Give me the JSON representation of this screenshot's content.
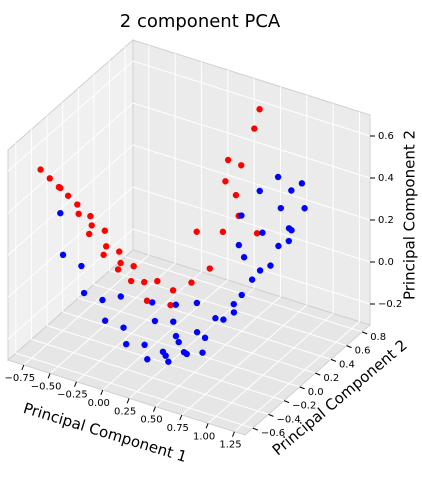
{
  "chart_data": {
    "type": "scatter3d",
    "title": "2 component PCA",
    "xlabel": "Principal Component 1",
    "ylabel": "Principal Component 2",
    "zlabel": "Principal Component 2",
    "xlim": [
      -0.9,
      1.35
    ],
    "ylim": [
      -0.7,
      0.9
    ],
    "zlim": [
      -0.3,
      0.7
    ],
    "grid": true,
    "xticks": [
      {
        "value": -0.75,
        "label": "−0.75"
      },
      {
        "value": -0.5,
        "label": "−0.50"
      },
      {
        "value": -0.25,
        "label": "−0.25"
      },
      {
        "value": 0,
        "label": "0.00"
      },
      0.25,
      {
        "value": 0.5,
        "label": "0.50"
      },
      0.75,
      {
        "value": 1,
        "label": "1.00"
      },
      1.25
    ],
    "yticks": [
      {
        "value": -0.6,
        "label": "−0.6"
      },
      {
        "value": -0.4,
        "label": "−0.4"
      },
      {
        "value": -0.2,
        "label": "−0.2"
      },
      {
        "value": 0,
        "label": "0.0"
      },
      0.2,
      0.4,
      0.6,
      0.8
    ],
    "zticks": [
      {
        "value": -0.2,
        "label": "−0.2"
      },
      {
        "value": 0,
        "label": "0.0"
      },
      0.2,
      0.4,
      0.6
    ],
    "series": [
      {
        "color": "#ff0000",
        "x": [
          -0.85,
          -0.8,
          -0.75,
          -0.7,
          -0.7,
          -0.65,
          -0.6,
          -0.6,
          -0.55,
          -0.5,
          -0.5,
          -0.45,
          -0.4,
          -0.4,
          -0.35,
          -0.3,
          -0.3,
          -0.25,
          -0.2,
          -0.15,
          -0.1,
          0,
          0.05,
          0.1,
          0.2,
          0.25,
          0.3,
          0.35,
          0.4,
          0.45,
          0.3,
          0.2,
          0.4,
          0.5,
          0.15
        ],
        "y": [
          -0.35,
          -0.3,
          -0.25,
          -0.2,
          -0.3,
          -0.15,
          -0.2,
          -0.05,
          -0.1,
          0,
          -0.2,
          -0.05,
          0.05,
          -0.15,
          0,
          0.1,
          -0.1,
          0,
          0.1,
          0.2,
          0,
          0.2,
          0.1,
          0.3,
          0.4,
          0.5,
          0.6,
          0.6,
          0.7,
          0.7,
          0.5,
          0.6,
          0.5,
          0.6,
          0.3
        ],
        "z": [
          0.5,
          0.45,
          0.4,
          0.35,
          0.42,
          0.3,
          0.28,
          0.22,
          0.2,
          0.15,
          0.2,
          0.1,
          0.05,
          0.1,
          0.02,
          -0.02,
          0.03,
          -0.05,
          -0.08,
          -0.1,
          -0.12,
          -0.12,
          -0.15,
          -0.1,
          -0.05,
          0.1,
          0.25,
          0.4,
          0.55,
          0.65,
          0.45,
          0.3,
          0.2,
          0.1,
          0.15
        ]
      },
      {
        "color": "#0000ff",
        "x": [
          -0.7,
          -0.6,
          -0.5,
          -0.4,
          -0.3,
          -0.2,
          -0.1,
          0,
          0.1,
          0.2,
          0.3,
          0.4,
          0.5,
          0.6,
          0.7,
          0.8,
          0.9,
          1,
          1.05,
          1.1,
          0.95,
          0.85,
          0.75,
          0.65,
          0.55,
          0.45,
          0.35,
          0.25,
          0.15,
          0.05,
          -0.05,
          0.2,
          0.4,
          0.6,
          0.7,
          0.8,
          0.6,
          0.5,
          0.9,
          1,
          0.7,
          0.55,
          0.3,
          0.1,
          -0.2,
          0.8,
          1.1,
          0.65
        ],
        "y": [
          -0.3,
          -0.4,
          -0.3,
          -0.4,
          -0.3,
          -0.4,
          -0.3,
          -0.4,
          -0.3,
          -0.4,
          -0.3,
          -0.4,
          -0.3,
          -0.2,
          -0.1,
          0,
          0.1,
          0.2,
          0.3,
          0.2,
          0.4,
          0.3,
          0.2,
          0.1,
          0,
          -0.1,
          -0.2,
          -0.1,
          0,
          -0.1,
          0,
          -0.2,
          -0.2,
          0.3,
          0.4,
          0.5,
          0.5,
          0.4,
          0.5,
          0.5,
          0.6,
          0.3,
          0.1,
          0.1,
          -0.2,
          -0.1,
          0.4,
          -0.3
        ],
        "z": [
          0.3,
          0.15,
          0.08,
          0,
          -0.05,
          -0.1,
          -0.15,
          -0.18,
          -0.2,
          -0.22,
          -0.22,
          -0.2,
          -0.18,
          -0.12,
          -0.05,
          0.05,
          0.15,
          0.25,
          0.3,
          0.35,
          0.2,
          0.1,
          0.05,
          -0.05,
          -0.1,
          -0.15,
          -0.18,
          -0.2,
          -0.18,
          -0.16,
          -0.12,
          -0.25,
          -0.22,
          0.1,
          0.2,
          0.3,
          0.35,
          0.25,
          0.4,
          0.45,
          0.4,
          0.15,
          -0.1,
          -0.14,
          -0.05,
          0,
          0.38,
          -0.15
        ]
      }
    ]
  }
}
